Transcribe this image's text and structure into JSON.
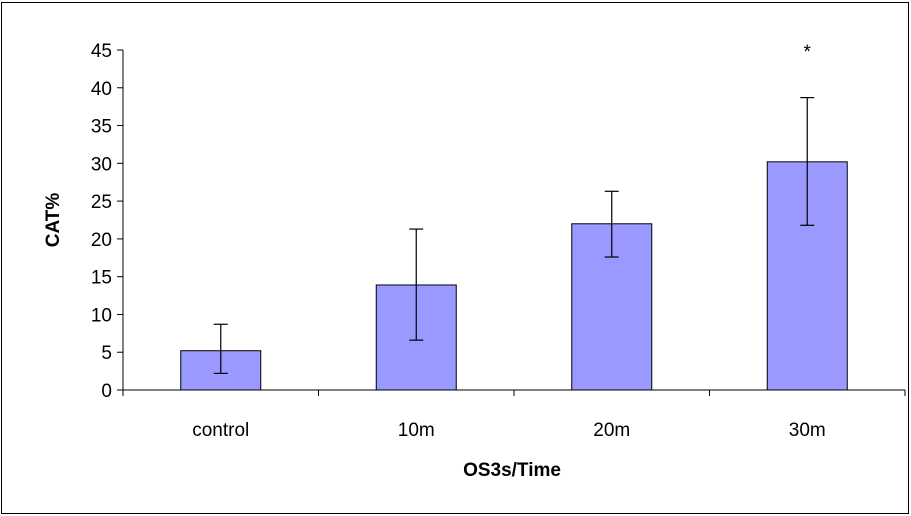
{
  "chart_data": {
    "type": "bar",
    "categories": [
      "control",
      "10m",
      "20m",
      "30m"
    ],
    "values": [
      5.2,
      13.9,
      22.0,
      30.2
    ],
    "error_low": [
      2.2,
      6.6,
      17.6,
      21.8
    ],
    "error_high": [
      8.7,
      21.3,
      26.3,
      38.7
    ],
    "annotations": [
      "",
      "",
      "",
      "*"
    ],
    "title": "",
    "xlabel": "OS3s/Time",
    "ylabel": "CAT%",
    "ylim": [
      0,
      45
    ],
    "yticks": [
      0,
      5,
      10,
      15,
      20,
      25,
      30,
      35,
      40,
      45
    ],
    "grid": false,
    "legend": "none",
    "bar_color": "#9999FF",
    "bar_edge_color": "#000000"
  }
}
